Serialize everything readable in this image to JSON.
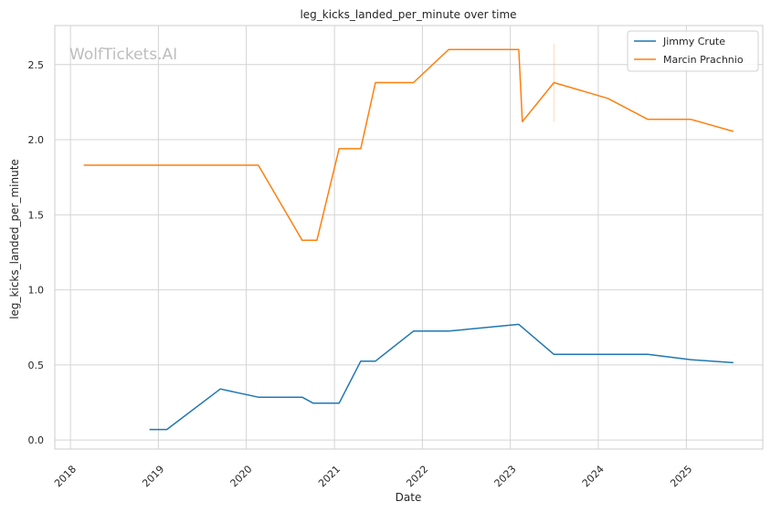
{
  "chart_data": {
    "type": "line",
    "title": "leg_kicks_landed_per_minute over time",
    "xlabel": "Date",
    "ylabel": "leg_kicks_landed_per_minute",
    "watermark": "WolfTickets.AI",
    "x_ticks": [
      "2018",
      "2019",
      "2020",
      "2021",
      "2022",
      "2023",
      "2024",
      "2025"
    ],
    "y_ticks": [
      "0.0",
      "0.5",
      "1.0",
      "1.5",
      "2.0",
      "2.5"
    ],
    "xlim": [
      "2017-10-28",
      "2025-11-14"
    ],
    "ylim": [
      -0.06,
      2.76
    ],
    "grid": true,
    "legend_position": "top-right",
    "series": [
      {
        "name": "Jimmy Crute",
        "color": "#1f77b4",
        "points": [
          [
            "2018-11-25",
            0.07
          ],
          [
            "2019-02-05",
            0.07
          ],
          [
            "2019-09-15",
            0.34
          ],
          [
            "2020-02-20",
            0.285
          ],
          [
            "2020-08-20",
            0.285
          ],
          [
            "2020-10-05",
            0.245
          ],
          [
            "2021-01-20",
            0.245
          ],
          [
            "2021-04-20",
            0.525
          ],
          [
            "2021-06-20",
            0.525
          ],
          [
            "2021-11-25",
            0.725
          ],
          [
            "2022-04-20",
            0.725
          ],
          [
            "2023-02-05",
            0.77
          ],
          [
            "2023-07-01",
            0.57
          ],
          [
            "2024-07-25",
            0.57
          ],
          [
            "2025-01-20",
            0.535
          ],
          [
            "2025-07-15",
            0.515
          ]
        ]
      },
      {
        "name": "Marcin Prachnio",
        "color": "#ff7f0e",
        "points": [
          [
            "2018-02-25",
            1.83
          ],
          [
            "2020-02-20",
            1.83
          ],
          [
            "2020-08-20",
            1.33
          ],
          [
            "2020-10-20",
            1.33
          ],
          [
            "2021-01-20",
            1.94
          ],
          [
            "2021-04-20",
            1.94
          ],
          [
            "2021-06-20",
            2.38
          ],
          [
            "2021-11-25",
            2.38
          ],
          [
            "2022-04-20",
            2.6
          ],
          [
            "2023-02-05",
            2.6
          ],
          [
            "2023-02-20",
            2.12
          ],
          [
            "2023-07-01",
            2.38
          ],
          [
            "2024-02-10",
            2.275
          ],
          [
            "2024-07-25",
            2.135
          ],
          [
            "2025-01-20",
            2.135
          ],
          [
            "2025-07-15",
            2.055
          ]
        ]
      }
    ],
    "error_bar": {
      "x": "2023-07-01",
      "low": 2.12,
      "high": 2.64,
      "color": "#ff7f0e"
    }
  }
}
